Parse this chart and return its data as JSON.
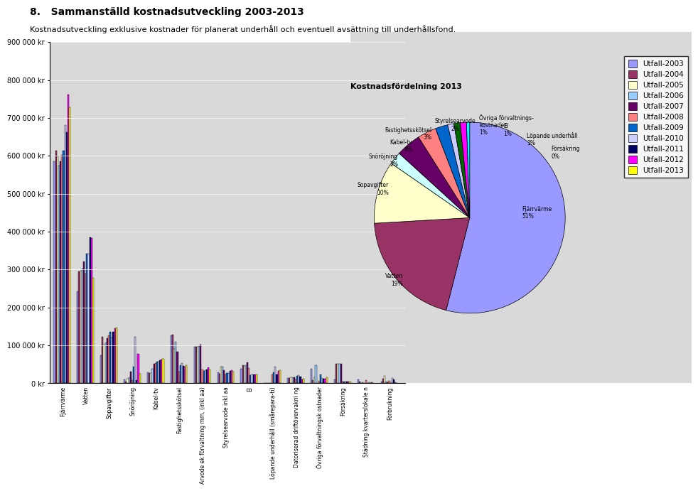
{
  "title": "8.   Sammanställd kostnadsutveckling 2003-2013",
  "subtitle": "Kostnadsutveckling exklusive kostnader för planerat underhåll och eventuell avsättning till underhållsfond.",
  "pie_title": "Kostnadsfördelning 2013",
  "pie_labels": [
    "Fjärrvärme\n51%",
    "Vatten\n19%",
    "Sopavgifter\n10%",
    "Snöröjning\n2%",
    "Kabel-tv\n4%",
    "Fastighetsskötsel\n3%",
    "Styrelsearvode\n2%",
    "Övriga förvaltnings-\nkostnader\n1%",
    "El\n1%",
    "Löpande underhåll\n1%",
    "Försäkring\n0%"
  ],
  "pie_values": [
    51,
    19,
    10,
    2,
    4,
    3,
    2,
    1,
    1,
    1,
    0.5
  ],
  "pie_colors": [
    "#9999ff",
    "#993366",
    "#ffffcc",
    "#ccffff",
    "#660066",
    "#ff8080",
    "#0066cc",
    "#ccccff",
    "#006600",
    "#ff00ff",
    "#00ffff"
  ],
  "years": [
    "Utfall-2003",
    "Utfall-2004",
    "Utfall-2005",
    "Utfall-2006",
    "Utfall-2007",
    "Utfall-2008",
    "Utfall-2009",
    "Utfall-2010",
    "Utfall-2011",
    "Utfall-2012",
    "Utfall-2013"
  ],
  "year_colors": [
    "#9999ff",
    "#993366",
    "#ffffcc",
    "#ccffff",
    "#660066",
    "#ff8080",
    "#0066cc",
    "#ccccff",
    "#000066",
    "#ff00ff",
    "#ffff00"
  ],
  "year_colors_legend": [
    "#9999ff",
    "#993300",
    "#ffffcc",
    "#ff8080",
    "#ccffff",
    "#660066",
    "#0066cc",
    "#ccccff",
    "#000066",
    "#ff00ff",
    "#ffff00"
  ],
  "categories": [
    "Fjärrvärme",
    "Vatten",
    "Sopavgifter",
    "Snöröjning",
    "Kabel-tv",
    "Fastighetsskötsel",
    "Arvode ek förvaltning mm. (inkl aa)",
    "Styrelsearvode inkl aa",
    "El",
    "Löpande underhåll (smårepara-ti)",
    "Datoriserad driftövervakni ng",
    "Övriga förvaltningsk ostnader",
    "Försäkring",
    "Städning kvarterslokale n",
    "Förbrukning"
  ],
  "data": {
    "Utfall-2003": [
      585450,
      242144,
      73737,
      9750,
      28658,
      126175,
      95575,
      28640,
      37783,
      0,
      14081,
      38799,
      9377,
      10081,
      4483
    ],
    "Utfall-2004": [
      614381,
      294370,
      123018,
      3806,
      27044,
      128101,
      95484,
      24811,
      47231,
      0,
      14544,
      8608,
      50587,
      5002,
      11564
    ],
    "Utfall-2005": [
      599265,
      296651,
      102605,
      12900,
      27110,
      91229,
      97192,
      43039,
      46490,
      0,
      14804,
      15754,
      50585,
      0,
      19008
    ],
    "Utfall-2006": [
      575149,
      302530,
      106878,
      15609,
      38226,
      109623,
      98752,
      43039,
      46819,
      0,
      15000,
      48457,
      50596,
      1996,
      4303
    ],
    "Utfall-2007": [
      584954,
      320741,
      118638,
      30917,
      51740,
      83064,
      101289,
      33979,
      55938,
      0,
      15384,
      0,
      52151,
      1125,
      3344
    ],
    "Utfall-2008": [
      603307,
      288946,
      126451,
      8691,
      53766,
      31324,
      35428,
      24082,
      40153,
      23135,
      10500,
      6824,
      4499,
      9055,
      5868
    ],
    "Utfall-2009": [
      613317,
      341024,
      136492,
      43754,
      56733,
      48290,
      33000,
      27408,
      21108,
      29502,
      18738,
      23930,
      4761,
      0,
      1219
    ],
    "Utfall-2010": [
      680392,
      341669,
      120069,
      123439,
      57552,
      52816,
      35319,
      27790,
      22655,
      43050,
      21782,
      13364,
      4761,
      3006,
      13805
    ],
    "Utfall-2011": [
      661624,
      384878,
      136316,
      7912,
      60651,
      45178,
      36667,
      32800,
      22445,
      22537,
      17959,
      11468,
      4867,
      970,
      10950
    ],
    "Utfall-2012": [
      762717,
      384067,
      144418,
      77294,
      61784,
      43955,
      42827,
      33600,
      23339,
      33195,
      9577,
      11640,
      5026,
      3161,
      1906
    ],
    "Utfall-2013": [
      727824,
      278752,
      146413,
      24994,
      63622,
      47320,
      36667,
      31267,
      22989,
      33988,
      12303,
      16165,
      5141,
      0,
      0
    ]
  },
  "ylim": [
    0,
    900000
  ],
  "yticks": [
    0,
    100000,
    200000,
    300000,
    400000,
    500000,
    600000,
    700000,
    800000,
    900000
  ],
  "ytick_labels": [
    "0 kr",
    "100 000 kr",
    "200 000 kr",
    "300 000 kr",
    "400 000 kr",
    "500 000 kr",
    "600 000 kr",
    "700 000 kr",
    "800 000 kr",
    "900 000 kr"
  ]
}
